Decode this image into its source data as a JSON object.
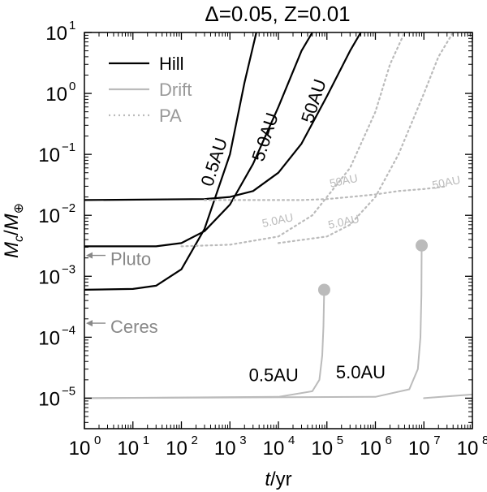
{
  "chart_data": {
    "type": "line",
    "title": "Δ=0.05, Z=0.01",
    "xlabel_italic": "t",
    "xlabel_rest": "/yr",
    "ylabel_main": "M",
    "ylabel_sub": "c",
    "ylabel_den": "M",
    "ylabel_den_sub": "⊕",
    "x_scale": "log",
    "y_scale": "log",
    "xlim": [
      1,
      100000000
    ],
    "ylim": [
      3.16e-06,
      10
    ],
    "x_ticks": [
      {
        "value": 1,
        "base": "10",
        "exp": "0"
      },
      {
        "value": 10,
        "base": "10",
        "exp": "1"
      },
      {
        "value": 100,
        "base": "10",
        "exp": "2"
      },
      {
        "value": 1000,
        "base": "10",
        "exp": "3"
      },
      {
        "value": 10000,
        "base": "10",
        "exp": "4"
      },
      {
        "value": 100000,
        "base": "10",
        "exp": "5"
      },
      {
        "value": 1000000,
        "base": "10",
        "exp": "6"
      },
      {
        "value": 10000000,
        "base": "10",
        "exp": "7"
      },
      {
        "value": 100000000,
        "base": "10",
        "exp": "8"
      }
    ],
    "y_ticks": [
      {
        "value": 1e-05,
        "base": "10",
        "exp": "−5"
      },
      {
        "value": 0.0001,
        "base": "10",
        "exp": "−4"
      },
      {
        "value": 0.001,
        "base": "10",
        "exp": "−3"
      },
      {
        "value": 0.01,
        "base": "10",
        "exp": "−2"
      },
      {
        "value": 0.1,
        "base": "10",
        "exp": "−1"
      },
      {
        "value": 1,
        "base": "10",
        "exp": "0"
      },
      {
        "value": 10,
        "base": "10",
        "exp": "1"
      }
    ],
    "legend": {
      "placement": "top-left",
      "entries": [
        {
          "label": "Hill",
          "color": "#000000",
          "style": "solid"
        },
        {
          "label": "Drift",
          "color": "#bbbbbb",
          "style": "solid"
        },
        {
          "label": "PA",
          "color": "#bbbbbb",
          "style": "dotted"
        }
      ]
    },
    "series": [
      {
        "group": "Hill",
        "label": "0.5AU",
        "color": "#000000",
        "style": "solid",
        "x": [
          1,
          10,
          30,
          100,
          300,
          1000,
          2000,
          3500
        ],
        "y": [
          0.0006,
          0.00062,
          0.0007,
          0.0013,
          0.006,
          0.1,
          1.5,
          10
        ]
      },
      {
        "group": "Hill",
        "label": "5.0AU",
        "color": "#000000",
        "style": "solid",
        "x": [
          1,
          30,
          100,
          300,
          1000,
          3000,
          10000,
          30000,
          50000
        ],
        "y": [
          0.0031,
          0.0031,
          0.0035,
          0.0055,
          0.015,
          0.07,
          0.6,
          5,
          10
        ]
      },
      {
        "group": "Hill",
        "label": "50AU",
        "color": "#000000",
        "style": "solid",
        "x": [
          1,
          300,
          1000,
          3000,
          10000,
          30000,
          100000,
          300000,
          500000
        ],
        "y": [
          0.0178,
          0.0185,
          0.02,
          0.025,
          0.05,
          0.15,
          0.9,
          5,
          10
        ]
      },
      {
        "group": "PA",
        "label": "0.5AU",
        "color": "#bbbbbb",
        "style": "dotted",
        "x": [
          300,
          3000,
          30000,
          100000,
          300000,
          1000000,
          3000000,
          10000000,
          30000000
        ],
        "y": [
          0.0178,
          0.0178,
          0.0178,
          0.0185,
          0.02,
          0.022,
          0.025,
          0.027,
          0.03
        ]
      },
      {
        "group": "PA",
        "label": "5.0AU",
        "color": "#bbbbbb",
        "style": "dotted",
        "x": [
          100,
          1000,
          10000,
          50000,
          100000,
          300000,
          1000000,
          2000000,
          4000000
        ],
        "y": [
          0.0031,
          0.0033,
          0.0045,
          0.01,
          0.02,
          0.06,
          0.5,
          3,
          10
        ]
      },
      {
        "group": "PA",
        "label": "50AU",
        "color": "#bbbbbb",
        "style": "dotted",
        "x": [
          10000,
          100000,
          300000,
          1000000,
          3000000,
          10000000,
          20000000,
          40000000
        ],
        "y": [
          0.0035,
          0.0045,
          0.007,
          0.02,
          0.1,
          1,
          4,
          10
        ]
      },
      {
        "group": "Drift",
        "label": "0.5AU",
        "color": "#bbbbbb",
        "style": "solid",
        "x": [
          1,
          10000,
          50000,
          70000,
          80000,
          85000,
          88000
        ],
        "y": [
          1e-05,
          1.05e-05,
          1.3e-05,
          2e-05,
          5e-05,
          0.00015,
          0.0006
        ],
        "end_marker": {
          "x": 88000,
          "y": 0.0006
        }
      },
      {
        "group": "Drift",
        "label": "5.0AU",
        "color": "#bbbbbb",
        "style": "solid",
        "x": [
          1,
          1000000,
          5000000,
          7500000,
          8500000,
          8900000,
          9000000
        ],
        "y": [
          1e-05,
          1.05e-05,
          1.4e-05,
          3e-05,
          0.0001,
          0.0005,
          0.0032
        ],
        "end_marker": {
          "x": 9000000,
          "y": 0.0032
        }
      },
      {
        "group": "Drift",
        "label": "",
        "color": "#bbbbbb",
        "style": "solid",
        "x": [
          10000000,
          100000000
        ],
        "y": [
          1e-05,
          1.15e-05
        ]
      }
    ],
    "annotations": [
      {
        "text": "0.5AU",
        "color": "#000000",
        "family": "serif",
        "x": 620,
        "y": 0.07,
        "angle": -72,
        "size": 22
      },
      {
        "text": "5.0AU",
        "color": "#000000",
        "family": "serif",
        "x": 7000,
        "y": 0.18,
        "angle": -72,
        "size": 22
      },
      {
        "text": "50AU",
        "color": "#000000",
        "family": "serif",
        "x": 70000,
        "y": 0.7,
        "angle": -72,
        "size": 22
      },
      {
        "text": "50AU",
        "color": "#bbbbbb",
        "family": "serif",
        "x": 230000,
        "y": 0.032,
        "angle": -12,
        "size": 14
      },
      {
        "text": "50AU",
        "color": "#bbbbbb",
        "family": "serif",
        "x": 30000000,
        "y": 0.03,
        "angle": -12,
        "size": 14
      },
      {
        "text": "5.0AU",
        "color": "#bbbbbb",
        "family": "serif",
        "x": 10000,
        "y": 0.0072,
        "angle": -12,
        "size": 14
      },
      {
        "text": "5.0AU",
        "color": "#bbbbbb",
        "family": "serif",
        "x": 230000,
        "y": 0.0068,
        "angle": -12,
        "size": 14
      },
      {
        "text": "0.5AU",
        "color": "#000000",
        "family": "serif",
        "x": 8000,
        "y": 1.9e-05,
        "angle": 0,
        "size": 22
      },
      {
        "text": "5.0AU",
        "color": "#000000",
        "family": "serif",
        "x": 500000,
        "y": 2.1e-05,
        "angle": 0,
        "size": 22
      }
    ],
    "markers": [
      {
        "text": "Pluto",
        "y": 0.0022,
        "color": "#888888"
      },
      {
        "text": "Ceres",
        "y": 0.00017,
        "color": "#888888"
      }
    ],
    "grid": false
  }
}
